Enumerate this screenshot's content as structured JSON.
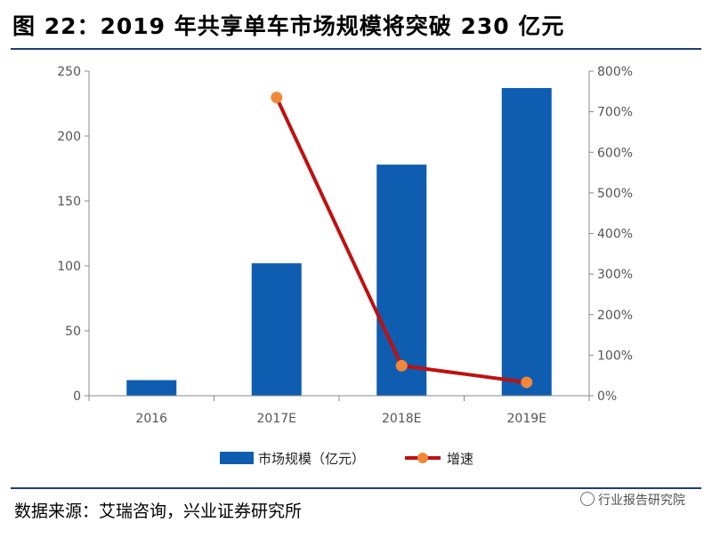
{
  "header": {
    "title": "图 22：2019 年共享单车市场规模将突破 230 亿元"
  },
  "footer": {
    "source": "数据来源：艾瑞咨询，兴业证券研究所",
    "watermark": "行业报告研究院"
  },
  "colors": {
    "bar": "#0f5db0",
    "line": "#c01010",
    "marker": "#f0883a",
    "axis": "#888888",
    "rule": "#1f3d7a"
  },
  "chart_data": {
    "type": "bar",
    "title": "",
    "categories": [
      "2016",
      "2017E",
      "2018E",
      "2019E"
    ],
    "series": [
      {
        "name": "市场规模（亿元）",
        "type": "bar",
        "axis": "left",
        "values": [
          12,
          102,
          178,
          237
        ]
      },
      {
        "name": "增速",
        "type": "line",
        "axis": "right",
        "values": [
          null,
          7.35,
          0.74,
          0.33
        ]
      }
    ],
    "left_axis": {
      "min": 0,
      "max": 250,
      "ticks": [
        "0",
        "50",
        "100",
        "150",
        "200",
        "250"
      ]
    },
    "right_axis": {
      "min": 0,
      "max": 8,
      "ticks": [
        "0%",
        "100%",
        "200%",
        "300%",
        "400%",
        "500%",
        "600%",
        "700%",
        "800%"
      ]
    },
    "legend_position": "bottom",
    "grid": false
  }
}
